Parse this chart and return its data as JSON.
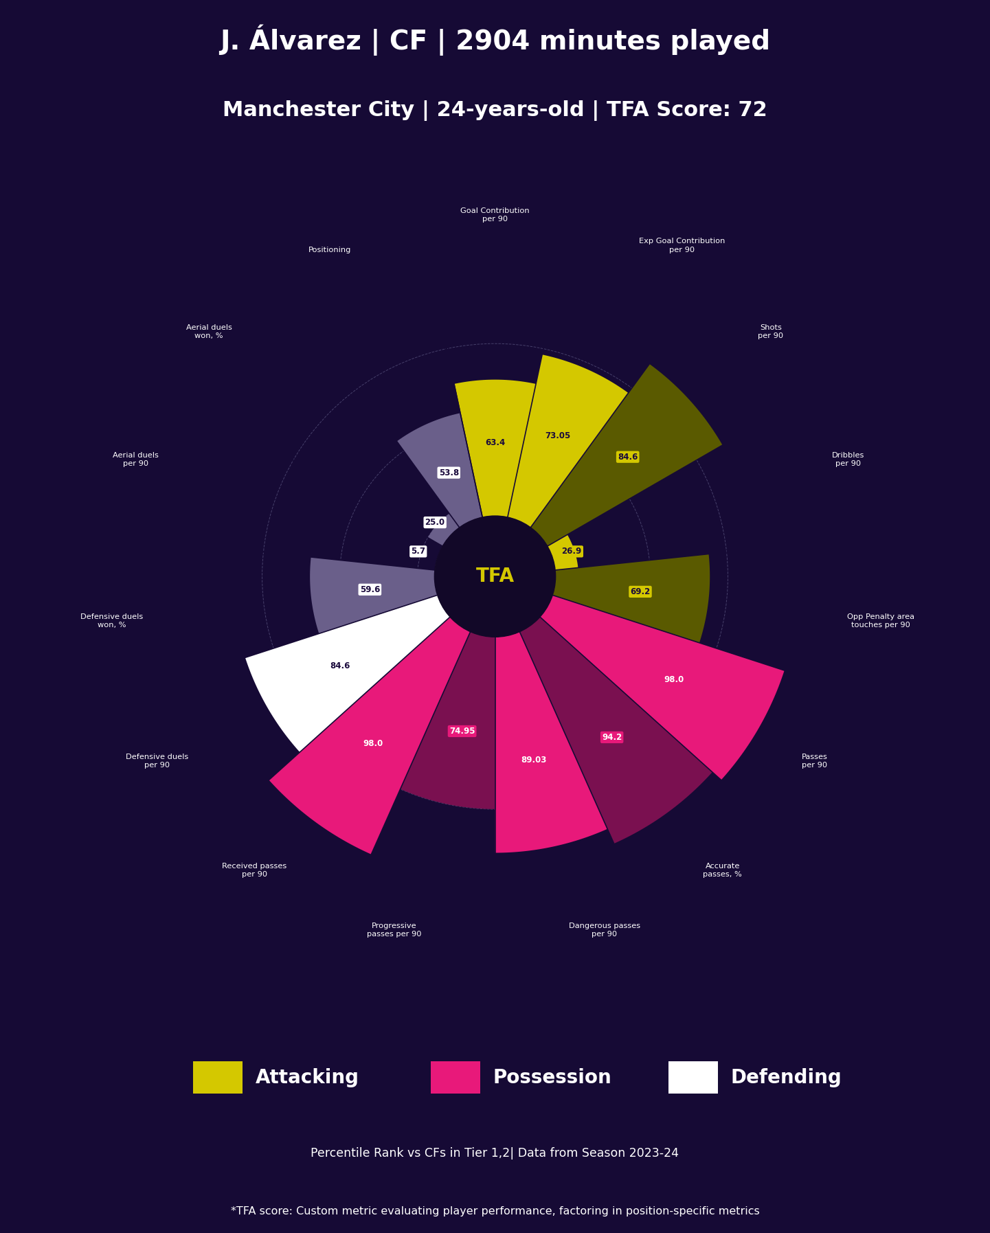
{
  "title_line1": "J. Álvarez | CF | 2904 minutes played",
  "title_line2": "Manchester City | 24-years-old | TFA Score: 72",
  "background_color": "#160a35",
  "metrics": [
    {
      "name": "Goal Contribution\nper 90",
      "value": 63.4,
      "category": "Attacking",
      "color": "#d4c800"
    },
    {
      "name": "Exp Goal Contribution\nper 90",
      "value": 73.05,
      "category": "Attacking",
      "color": "#d4c800"
    },
    {
      "name": "Shots\nper 90",
      "value": 84.6,
      "category": "Attacking",
      "color": "#5a5a00"
    },
    {
      "name": "Dribbles\nper 90",
      "value": 26.9,
      "category": "Attacking",
      "color": "#d4c800"
    },
    {
      "name": "Opp Penalty area\ntouches per 90",
      "value": 69.2,
      "category": "Attacking",
      "color": "#5a5a00"
    },
    {
      "name": "Passes\nper 90",
      "value": 98.0,
      "category": "Possession",
      "color": "#e8197a"
    },
    {
      "name": "Accurate\npasses, %",
      "value": 94.2,
      "category": "Possession",
      "color": "#7a1050"
    },
    {
      "name": "Dangerous passes\nper 90",
      "value": 89.03,
      "category": "Possession",
      "color": "#e8197a"
    },
    {
      "name": "Progressive\npasses per 90",
      "value": 74.95,
      "category": "Possession",
      "color": "#7a1050"
    },
    {
      "name": "Received passes\nper 90",
      "value": 98.0,
      "category": "Possession",
      "color": "#e8197a"
    },
    {
      "name": "Defensive duels\nper 90",
      "value": 84.6,
      "category": "Defending",
      "color": "#ffffff"
    },
    {
      "name": "Defensive duels\nwon, %",
      "value": 59.6,
      "category": "Defending",
      "color": "#6a5f8a"
    },
    {
      "name": "Aerial duels\nper 90",
      "value": 5.7,
      "category": "Defending",
      "color": "#ffffff"
    },
    {
      "name": "Aerial duels\nwon, %",
      "value": 25.0,
      "category": "Defending",
      "color": "#6a5f8a"
    },
    {
      "name": "Positioning",
      "value": 53.8,
      "category": "Defending",
      "color": "#6a5f8a"
    }
  ],
  "legend": [
    {
      "label": "Attacking",
      "color": "#d4c800"
    },
    {
      "label": "Possession",
      "color": "#e8197a"
    },
    {
      "label": "Defending",
      "color": "#ffffff"
    }
  ],
  "subtitle1": "Percentile Rank vs CFs in Tier 1,2| Data from Season 2023-24",
  "subtitle2": "*TFA score: Custom metric evaluating player performance, factoring in position-specific metrics",
  "max_value": 100,
  "ring_color": "#8080aa",
  "value_box_colors": {
    "Attacking": "#d4c800",
    "Possession": "#e8197a",
    "Defending": "#ffffff"
  },
  "value_text_colors": {
    "Attacking": "#1a0a3c",
    "Possession": "#ffffff",
    "Defending": "#1a0a3c"
  }
}
